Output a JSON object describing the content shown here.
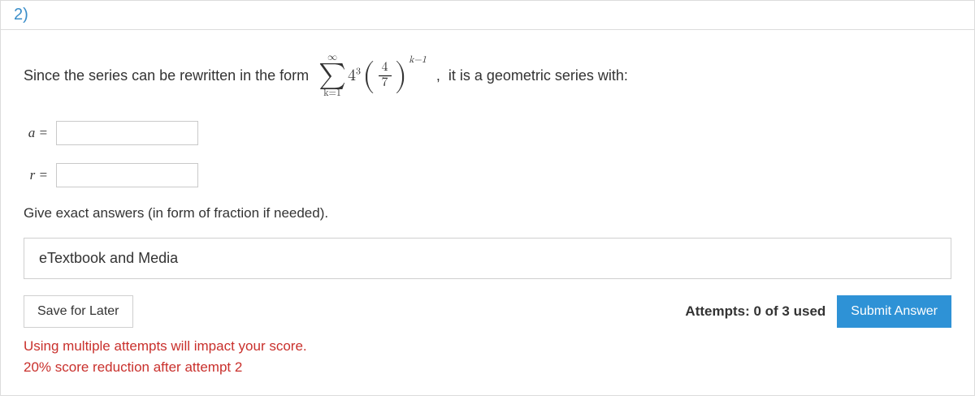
{
  "header": {
    "question_number": "2)"
  },
  "stem": {
    "text_before": "Since the series can be rewritten in the form",
    "sum_top": "∞",
    "sum_bottom": "k=1",
    "coeff_base": "4",
    "coeff_exp": "3",
    "frac_num": "4",
    "frac_den": "7",
    "outer_exp": "k−1",
    "text_after": ",  it is a geometric series with:"
  },
  "inputs": {
    "a_label": "a =",
    "a_value": "",
    "r_label": "r =",
    "r_value": ""
  },
  "hint": "Give exact answers (in form of fraction if needed).",
  "etextbook_label": "eTextbook and Media",
  "footer": {
    "save_label": "Save for Later",
    "attempts_text": "Attempts: 0 of 3 used",
    "submit_label": "Submit Answer",
    "policy_line1": "Using multiple attempts will impact your score.",
    "policy_line2": "20% score reduction after attempt 2"
  },
  "colors": {
    "accent_blue": "#2e92d6",
    "link_blue": "#3a8ec9",
    "warn_red": "#c9302c",
    "border_gray": "#dcdcdc"
  }
}
